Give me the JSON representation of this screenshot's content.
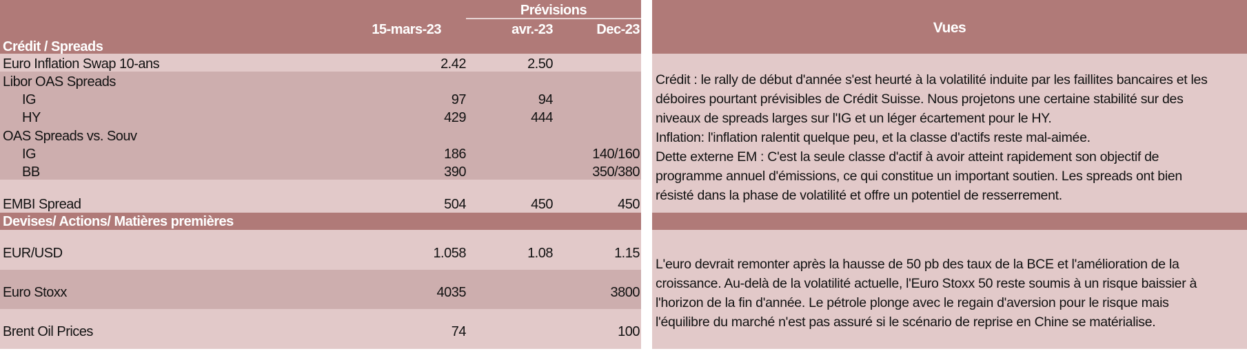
{
  "table": {
    "forecast_header": "Prévisions",
    "col_date": "15-mars-23",
    "col_apr": "avr.-23",
    "col_dec": "Dec-23",
    "section_credit": "Crédit / Spreads",
    "section_fx": "Devises/ Actions/ Matières premières",
    "rows": [
      {
        "label": "Euro Inflation Swap 10-ans",
        "v1": "2.42",
        "v2": "2.50",
        "v3": ""
      },
      {
        "label": "Libor OAS Spreads",
        "v1": "",
        "v2": "",
        "v3": ""
      },
      {
        "label": "IG",
        "v1": "97",
        "v2": "94",
        "v3": ""
      },
      {
        "label": "HY",
        "v1": "429",
        "v2": "444",
        "v3": ""
      },
      {
        "label": "OAS Spreads vs. Souv",
        "v1": "",
        "v2": "",
        "v3": ""
      },
      {
        "label": "IG",
        "v1": "186",
        "v2": "",
        "v3": "140/160"
      },
      {
        "label": "BB",
        "v1": "390",
        "v2": "",
        "v3": "350/380"
      },
      {
        "label": "EMBI Spread",
        "v1": "504",
        "v2": "450",
        "v3": "450"
      },
      {
        "label": "EUR/USD",
        "v1": "1.058",
        "v2": "1.08",
        "v3": "1.15"
      },
      {
        "label": "Euro Stoxx",
        "v1": "4035",
        "v2": "",
        "v3": "3800"
      },
      {
        "label": "Brent Oil Prices",
        "v1": "74",
        "v2": "",
        "v3": "100"
      }
    ]
  },
  "views": {
    "title": "Vues",
    "credit_text": "Crédit : le rally de début d'année s'est heurté à la volatilité induite par les faillites bancaires et les déboires pourtant prévisibles de Crédit Suisse. Nous projetons une certaine stabilité sur des niveaux  de spreads larges sur l'IG et un léger écartement pour le HY.",
    "inflation_text": "Inflation: l'inflation ralentit quelque peu, et la classe d'actifs reste mal-aimée.",
    "em_text": "Dette externe EM : C'est la seule classe d'actif à avoir atteint rapidement son objectif de programme annuel d'émissions, ce qui constitue un important soutien. Les spreads ont bien résisté dans la phase de volatilité et offre un potentiel de resserrement.",
    "fx_text": "L'euro devrait remonter après la hausse de 50 pb des taux de la BCE et l'amélioration de la croissance. Au-delà de la volatilité actuelle, l'Euro Stoxx 50 reste soumis à un risque baissier à l'horizon de la fin d'année. Le pétrole plonge avec le regain d'aversion pour le risque mais l'équilibre du marché n'est pas assuré si le scénario de reprise en Chine se matérialise."
  }
}
